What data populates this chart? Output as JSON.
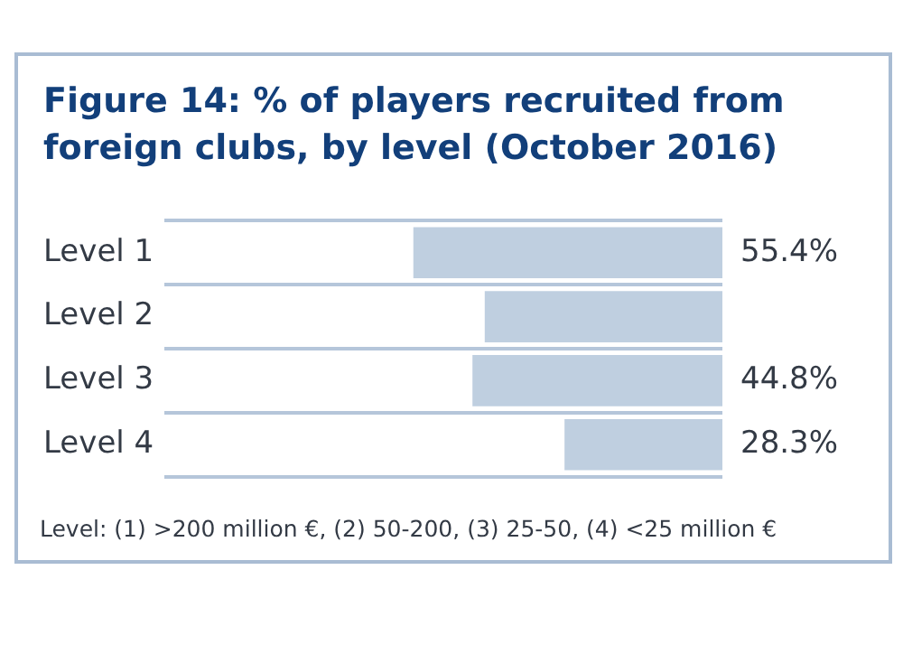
{
  "chart_data": {
    "type": "bar",
    "orientation": "horizontal",
    "title": "Figure 14: % of players recruited from foreign clubs, by level (October 2016)",
    "categories": [
      "Level 1",
      "Level 2",
      "Level 3",
      "Level 4"
    ],
    "values": [
      55.4,
      42.6,
      44.8,
      28.3
    ],
    "value_labels": [
      "55.4%",
      null,
      "44.8%",
      "28.3%"
    ],
    "color": "#bfcfe0",
    "xlim": [
      100,
      0
    ],
    "tick_labels": "y",
    "grid": "y",
    "legend": false,
    "annotations": [
      "Level: (1) >200 million €, (2) 50-200, (3) 25-50, (4) <25 million €"
    ]
  }
}
